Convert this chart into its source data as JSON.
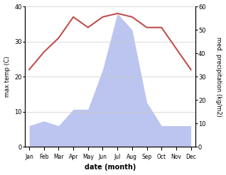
{
  "months": [
    "Jan",
    "Feb",
    "Mar",
    "Apr",
    "May",
    "Jun",
    "Jul",
    "Aug",
    "Sep",
    "Oct",
    "Nov",
    "Dec"
  ],
  "temperature": [
    22,
    27,
    31,
    37,
    34,
    37,
    38,
    37,
    34,
    34,
    28,
    22
  ],
  "precipitation": [
    9,
    11,
    9,
    16,
    16,
    33,
    57,
    50,
    19,
    9,
    9,
    9
  ],
  "temp_color": "#c0504d",
  "precip_fill_color": "#bcc5ef",
  "ylabel_left": "max temp (C)",
  "ylabel_right": "med. precipitation (kg/m2)",
  "xlabel": "date (month)",
  "ylim_left": [
    0,
    40
  ],
  "ylim_right": [
    0,
    60
  ],
  "yticks_left": [
    0,
    10,
    20,
    30,
    40
  ],
  "yticks_right": [
    0,
    10,
    20,
    30,
    40,
    50,
    60
  ],
  "background_color": "#ffffff",
  "figsize": [
    3.18,
    2.47
  ],
  "dpi": 100
}
